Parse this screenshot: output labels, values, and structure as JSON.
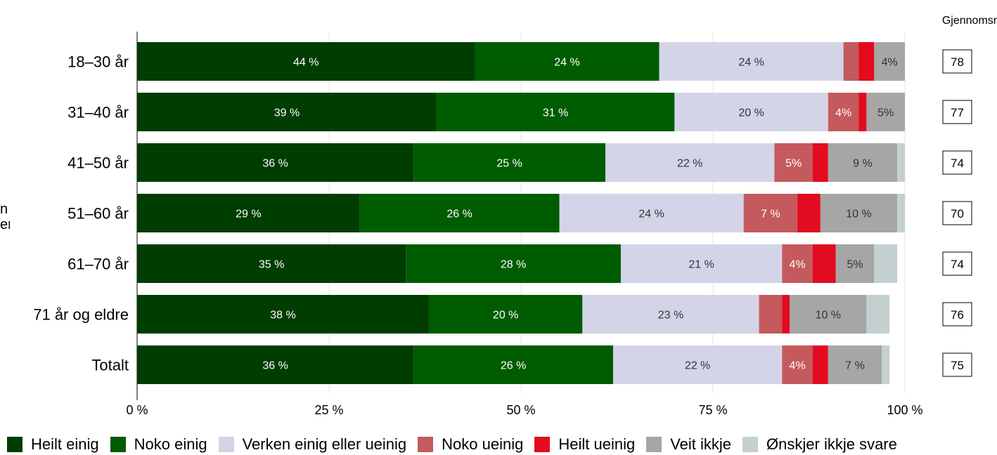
{
  "chart_data": {
    "type": "bar",
    "orientation": "horizontal",
    "stacked": true,
    "categories": [
      "18–30 år",
      "31–40 år",
      "41–50 år",
      "51–60 år",
      "61–70 år",
      "71 år og eldre",
      "Totalt"
    ],
    "series": [
      {
        "name": "Heilt einig",
        "color": "#003d00",
        "values": [
          44,
          39,
          36,
          29,
          35,
          38,
          36
        ],
        "labels": [
          "44 %",
          "39 %",
          "36 %",
          "29 %",
          "35 %",
          "38 %",
          "36 %"
        ]
      },
      {
        "name": "Noko einig",
        "color": "#005c00",
        "values": [
          24,
          31,
          25,
          26,
          28,
          20,
          26
        ],
        "labels": [
          "24 %",
          "31 %",
          "25 %",
          "26 %",
          "28 %",
          "20 %",
          "26 %"
        ]
      },
      {
        "name": "Verken einig eller ueinig",
        "color": "#d4d4e8",
        "values": [
          24,
          20,
          22,
          24,
          21,
          23,
          22
        ],
        "labels": [
          "24 %",
          "20 %",
          "22 %",
          "24 %",
          "21 %",
          "23 %",
          "22 %"
        ]
      },
      {
        "name": "Noko ueinig",
        "color": "#c45a5e",
        "values": [
          2,
          4,
          5,
          7,
          4,
          3,
          4
        ],
        "labels": [
          "",
          "4%",
          "5%",
          "7 %",
          "4%",
          "",
          "4%"
        ]
      },
      {
        "name": "Heilt ueinig",
        "color": "#e30b1f",
        "values": [
          2,
          1,
          2,
          3,
          3,
          1,
          2
        ],
        "labels": [
          "",
          "",
          "",
          "",
          "",
          "",
          ""
        ]
      },
      {
        "name": "Veit ikkje",
        "color": "#a6a6a6",
        "values": [
          4,
          5,
          9,
          10,
          5,
          10,
          7
        ],
        "labels": [
          "4%",
          "5%",
          "9 %",
          "10 %",
          "5%",
          "10 %",
          "7 %"
        ]
      },
      {
        "name": "Ønskjer ikkje svare",
        "color": "#c4d0d0",
        "values": [
          0,
          0,
          1,
          1,
          3,
          3,
          1
        ],
        "labels": [
          "",
          "",
          "",
          "",
          "",
          "",
          ""
        ]
      }
    ],
    "averages_header": "Gjennomsnitt",
    "averages": [
      "78",
      "77",
      "74",
      "70",
      "74",
      "76",
      "75"
    ],
    "xlim": [
      0,
      100
    ],
    "x_ticks": [
      0,
      25,
      50,
      75,
      100
    ],
    "x_tick_labels": [
      "0 %",
      "25 %",
      "50 %",
      "75 %",
      "100 %"
    ],
    "grid": true,
    "legend_position": "bottom",
    "clipped_axis_title": [
      "n",
      "er"
    ]
  }
}
